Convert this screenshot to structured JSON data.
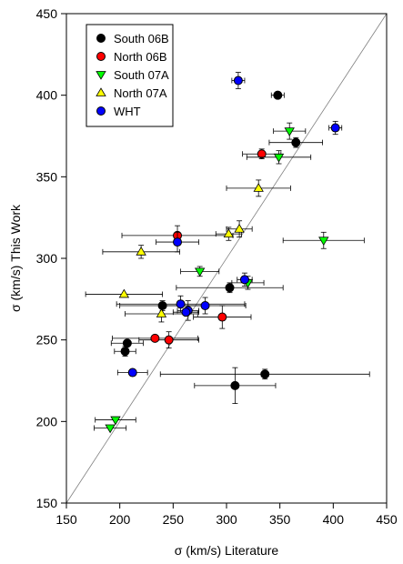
{
  "chart_data": {
    "type": "scatter",
    "title": "",
    "xlabel": "σ (km/s) Literature",
    "ylabel": "σ (km/s) This Work",
    "xlim": [
      150,
      450
    ],
    "ylim": [
      150,
      450
    ],
    "x_ticks": [
      150,
      200,
      250,
      300,
      350,
      400,
      450
    ],
    "y_ticks": [
      150,
      200,
      250,
      300,
      350,
      400,
      450
    ],
    "grid": false,
    "legend_position": "top-left",
    "reference_line": "one-to-one",
    "series": [
      {
        "name": "South 06B",
        "marker": "circle",
        "color": "#000000",
        "points": [
          {
            "x": 348,
            "y": 400,
            "xerr": 6,
            "yerr": 0
          },
          {
            "x": 365,
            "y": 371,
            "xerr": 25,
            "yerr": 3
          },
          {
            "x": 303,
            "y": 282,
            "xerr": 50,
            "yerr": 3
          },
          {
            "x": 240,
            "y": 271,
            "xerr": 40,
            "yerr": 3
          },
          {
            "x": 207,
            "y": 248,
            "xerr": 15,
            "yerr": 0
          },
          {
            "x": 205,
            "y": 243,
            "xerr": 10,
            "yerr": 3
          },
          {
            "x": 336,
            "y": 229,
            "xerr": 98,
            "yerr": 3
          },
          {
            "x": 308,
            "y": 222,
            "xerr": 38,
            "yerr": 11
          }
        ]
      },
      {
        "name": "North 06B",
        "marker": "circle",
        "color": "#ff0000",
        "points": [
          {
            "x": 333,
            "y": 364,
            "xerr": 18,
            "yerr": 3
          },
          {
            "x": 254,
            "y": 314,
            "xerr": 52,
            "yerr": 6
          },
          {
            "x": 296,
            "y": 264,
            "xerr": 27,
            "yerr": 7
          },
          {
            "x": 233,
            "y": 251,
            "xerr": 40,
            "yerr": 0
          },
          {
            "x": 246,
            "y": 250,
            "xerr": 28,
            "yerr": 5
          }
        ]
      },
      {
        "name": "South 07A",
        "marker": "triangle-down",
        "color": "#00ff00",
        "points": [
          {
            "x": 359,
            "y": 378,
            "xerr": 15,
            "yerr": 5
          },
          {
            "x": 349,
            "y": 362,
            "xerr": 30,
            "yerr": 4
          },
          {
            "x": 391,
            "y": 311,
            "xerr": 38,
            "yerr": 5
          },
          {
            "x": 275,
            "y": 292,
            "xerr": 18,
            "yerr": 3
          },
          {
            "x": 320,
            "y": 285,
            "xerr": 15,
            "yerr": 4
          },
          {
            "x": 196,
            "y": 201,
            "xerr": 19,
            "yerr": 0
          },
          {
            "x": 191,
            "y": 196,
            "xerr": 15,
            "yerr": 0
          }
        ]
      },
      {
        "name": "North 07A",
        "marker": "triangle-up",
        "color": "#ffff00",
        "points": [
          {
            "x": 330,
            "y": 343,
            "xerr": 30,
            "yerr": 5
          },
          {
            "x": 312,
            "y": 318,
            "xerr": 12,
            "yerr": 5
          },
          {
            "x": 302,
            "y": 315,
            "xerr": 12,
            "yerr": 4
          },
          {
            "x": 220,
            "y": 304,
            "xerr": 36,
            "yerr": 4
          },
          {
            "x": 204,
            "y": 278,
            "xerr": 36,
            "yerr": 0
          },
          {
            "x": 239,
            "y": 266,
            "xerr": 34,
            "yerr": 5
          }
        ]
      },
      {
        "name": "WHT",
        "marker": "circle",
        "color": "#0000ff",
        "points": [
          {
            "x": 311,
            "y": 409,
            "xerr": 6,
            "yerr": 5
          },
          {
            "x": 402,
            "y": 380,
            "xerr": 6,
            "yerr": 4
          },
          {
            "x": 254,
            "y": 310,
            "xerr": 20,
            "yerr": 6
          },
          {
            "x": 317,
            "y": 287,
            "xerr": 7,
            "yerr": 4
          },
          {
            "x": 257,
            "y": 272,
            "xerr": 60,
            "yerr": 5
          },
          {
            "x": 280,
            "y": 271,
            "xerr": 38,
            "yerr": 5
          },
          {
            "x": 264,
            "y": 268,
            "xerr": 10,
            "yerr": 6
          },
          {
            "x": 262,
            "y": 267,
            "xerr": 12,
            "yerr": 0
          },
          {
            "x": 212,
            "y": 230,
            "xerr": 14,
            "yerr": 0
          }
        ]
      }
    ]
  }
}
